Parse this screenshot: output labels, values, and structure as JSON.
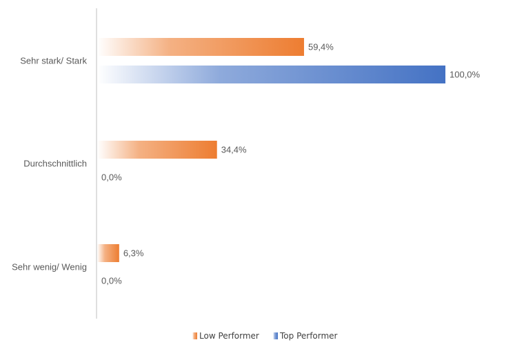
{
  "chart_data": {
    "type": "bar",
    "orientation": "horizontal",
    "categories": [
      "Sehr stark/ Stark",
      "Durchschnittlich",
      "Sehr wenig/ Wenig"
    ],
    "series": [
      {
        "name": "Low Performer",
        "values": [
          59.4,
          34.4,
          6.3
        ],
        "labels": [
          "59,4%",
          "34,4%",
          "6,3%"
        ],
        "color": "#ED7D31"
      },
      {
        "name": "Top Performer",
        "values": [
          100.0,
          0.0,
          0.0
        ],
        "labels": [
          "100,0%",
          "0,0%",
          "0,0%"
        ],
        "color": "#4472C4"
      }
    ],
    "xlim": [
      0,
      100
    ],
    "grid": false,
    "legend": "bottom-center"
  }
}
